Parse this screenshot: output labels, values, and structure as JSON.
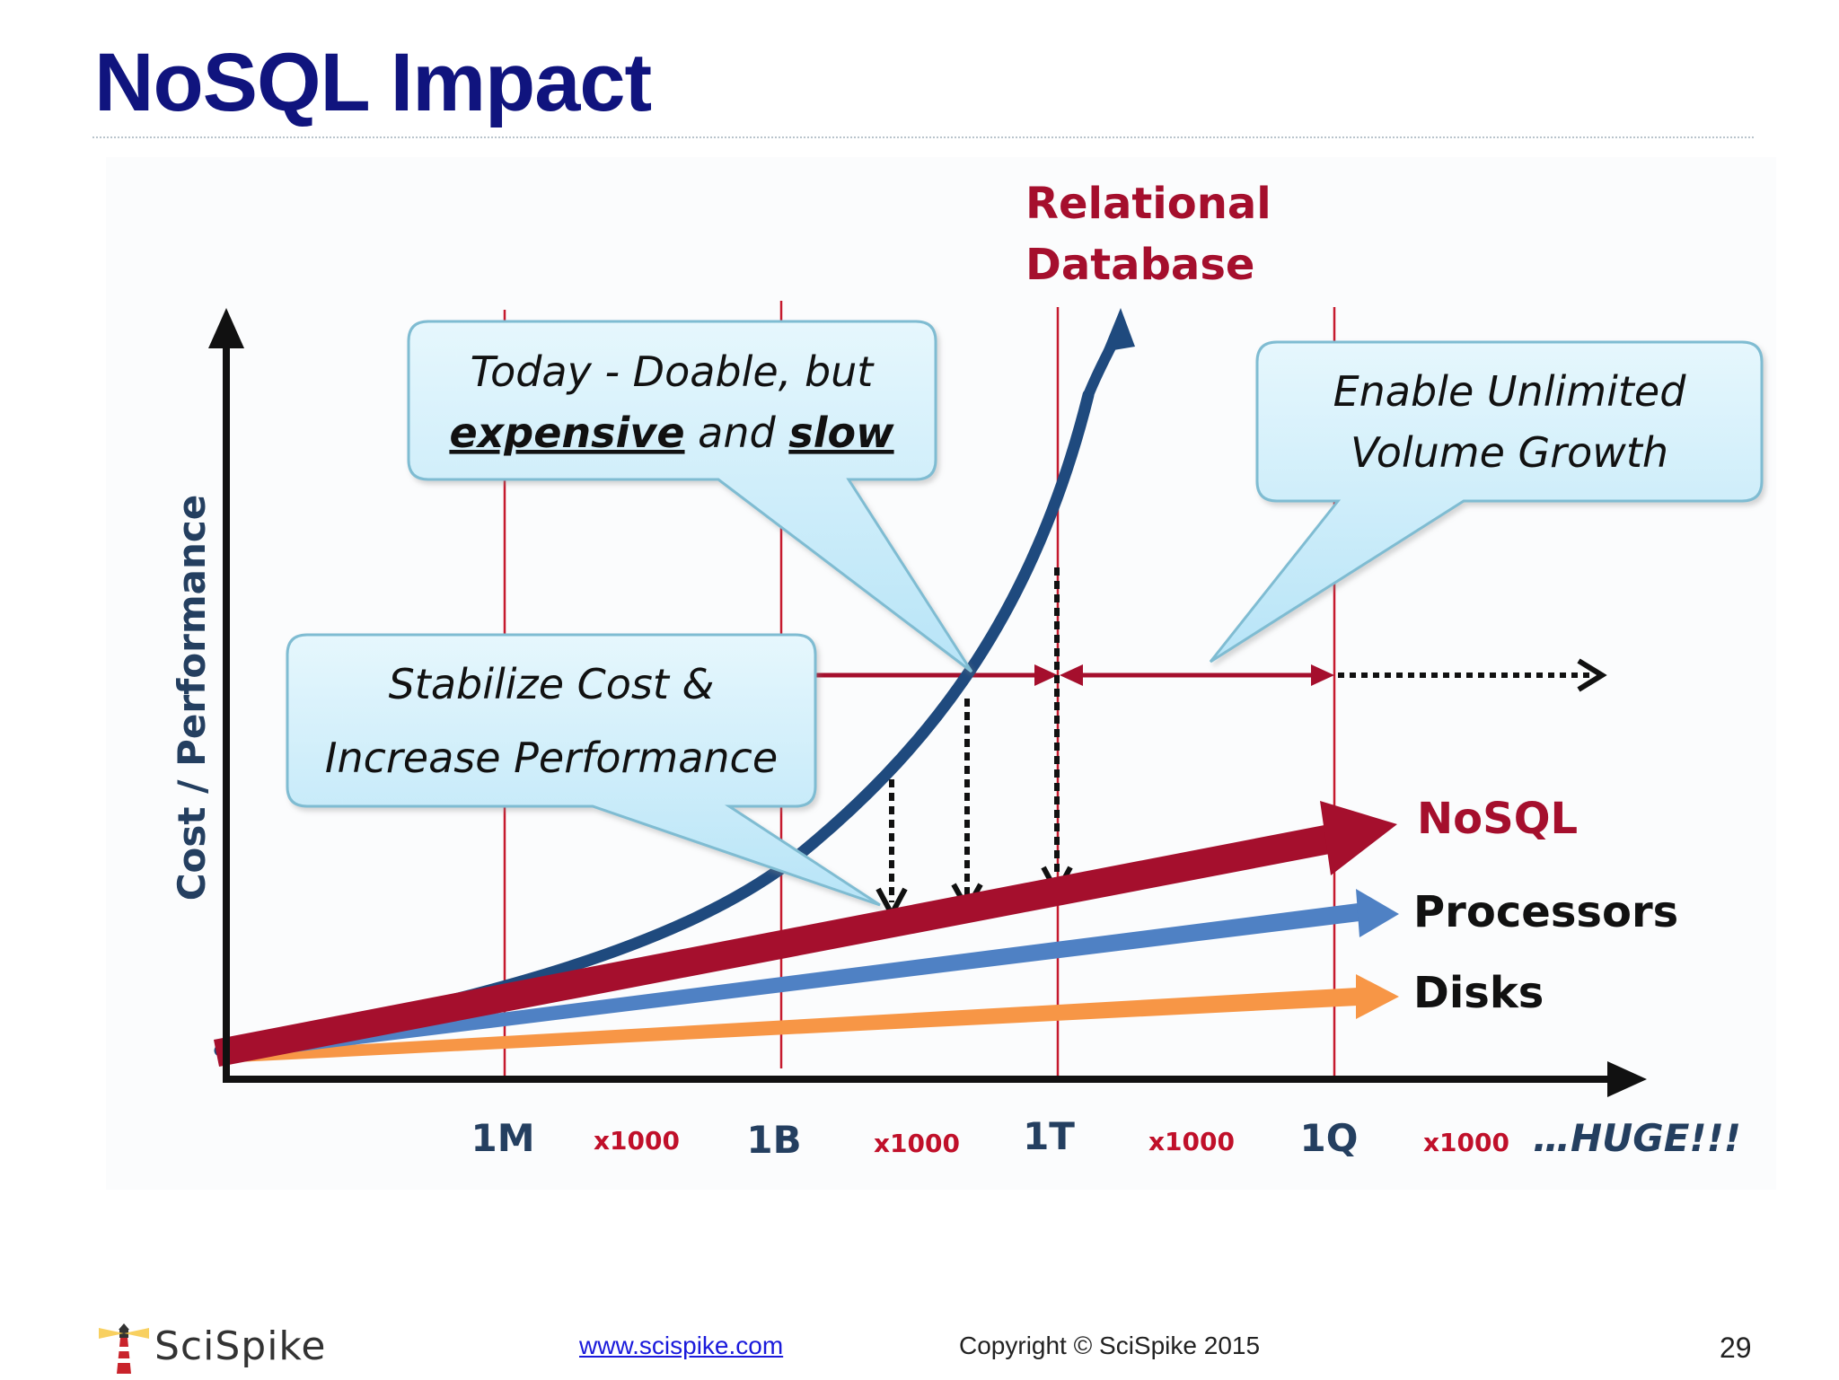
{
  "slide": {
    "title": "NoSQL Impact",
    "page_number": "29"
  },
  "diagram": {
    "y_axis_label": "Cost / Performance",
    "x_ticks": [
      "1M",
      "1B",
      "1T",
      "1Q",
      "…HUGE!!!"
    ],
    "x_multipliers": [
      "x1000",
      "x1000",
      "x1000",
      "x1000"
    ],
    "relational_label_line1": "Relational",
    "relational_label_line2": "Database",
    "series_labels": {
      "nosql": "NoSQL",
      "processors": "Processors",
      "disks": "Disks"
    },
    "callouts": {
      "today_prefix": "Today - Doable, but",
      "today_word1": "expensive",
      "today_joiner": " and ",
      "today_word2": "slow",
      "unlimited_line1": "Enable Unlimited",
      "unlimited_line2": "Volume Growth",
      "stabilize_line1": "Stabilize Cost &",
      "stabilize_line2": "Increase Performance"
    },
    "colors": {
      "relational": "#1f4a7e",
      "nosql": "#a50f2d",
      "processors": "#4f81c4",
      "disks": "#f79646",
      "callout_fill": "#c9ecfa",
      "callout_stroke": "#7fbcd2",
      "tick_text": "#243f60",
      "label_red": "#a50f2d"
    }
  },
  "footer": {
    "website": "www.scispike.com",
    "copyright": "Copyright © SciSpike 2015",
    "brand": "SciSpike"
  }
}
